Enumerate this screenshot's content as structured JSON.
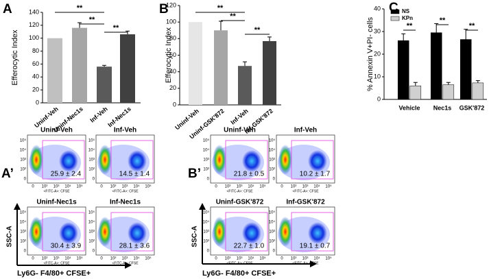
{
  "chart_data": [
    {
      "type": "bar",
      "panel_label": "A",
      "ylabel": "Efferocytic Index",
      "categories": [
        "Uninf-Veh",
        "Uninf-Nec1s",
        "Inf-Veh",
        "Inf-Nec1s"
      ],
      "values": [
        100,
        116,
        56,
        106
      ],
      "errors": [
        null,
        8,
        2,
        5
      ],
      "colors": [
        "#c0c0c0",
        "#a6a6a6",
        "#5a5a5a",
        "#404040"
      ],
      "ylim": [
        0,
        140
      ],
      "yticks": [
        0,
        20,
        40,
        60,
        80,
        100,
        120,
        140
      ],
      "significance": [
        "**",
        "**",
        "**"
      ]
    },
    {
      "type": "bar",
      "panel_label": "B",
      "ylabel": "Efferocytic Index",
      "categories": [
        "Uninf-Veh",
        "Uninf-GSK'872",
        "Inf-Veh",
        "Inf-GSK'872"
      ],
      "values": [
        100,
        90,
        47,
        77
      ],
      "errors": [
        null,
        11,
        5,
        5
      ],
      "colors": [
        "#e6e6e6",
        "#a6a6a6",
        "#5a5a5a",
        "#404040"
      ],
      "ylim": [
        0,
        120
      ],
      "yticks": [
        0,
        20,
        40,
        60,
        80,
        100,
        120
      ],
      "significance": [
        "**",
        "**",
        "**"
      ]
    },
    {
      "type": "grouped_bar",
      "panel_label": "C",
      "ylabel": "% Annexin V+PI- cells",
      "categories": [
        "Vehicle",
        "Nec1s",
        "GSK'872"
      ],
      "series": [
        {
          "name": "NS",
          "color": "#000000",
          "values": [
            26,
            29.5,
            26.5
          ],
          "errors": [
            3,
            4,
            4.5
          ]
        },
        {
          "name": "KPn",
          "color": "#d0d0d0",
          "values": [
            6,
            6.5,
            7.3
          ],
          "errors": [
            1.5,
            1,
            1
          ]
        }
      ],
      "ylim": [
        0,
        40
      ],
      "yticks": [
        0,
        10,
        20,
        30,
        40
      ],
      "legend": "top-left",
      "significance": [
        "**",
        "**",
        "**"
      ]
    }
  ],
  "flow_axis": {
    "yticks": [
      "10⁵",
      "10⁴",
      "10³",
      "10²",
      "0"
    ],
    "xticks": [
      "0",
      "10²",
      "10³",
      "10⁴",
      "10⁵"
    ],
    "xlabel": "<FITC-A>: CFSE"
  },
  "flow_panels": [
    {
      "label": "A’",
      "y_axis_label": "SSC-A",
      "x_axis_label": "Ly6G- F4/80+ CFSE+",
      "plots": [
        {
          "title": "Uninf-Veh",
          "value": "25.9 ± 2.4"
        },
        {
          "title": "Inf-Veh",
          "value": "14.5 ± 1.4"
        },
        {
          "title": "Uninf-Nec1s",
          "value": "30.4 ± 3.9"
        },
        {
          "title": "Inf-Nec1s",
          "value": "28.1 ± 3.6"
        }
      ]
    },
    {
      "label": "B’",
      "y_axis_label": "SSC-A",
      "x_axis_label": "Ly6G- F4/80+ CFSE+",
      "plots": [
        {
          "title": "Uninf-Veh",
          "value": "21.8 ± 0.5"
        },
        {
          "title": "Inf-Veh",
          "value": "10.2 ± 1.7"
        },
        {
          "title": "Uninf-GSK'872",
          "value": "22.7 ± 1.0"
        },
        {
          "title": "Inf-GSK'872",
          "value": "19.1 ± 0.7"
        }
      ]
    }
  ]
}
